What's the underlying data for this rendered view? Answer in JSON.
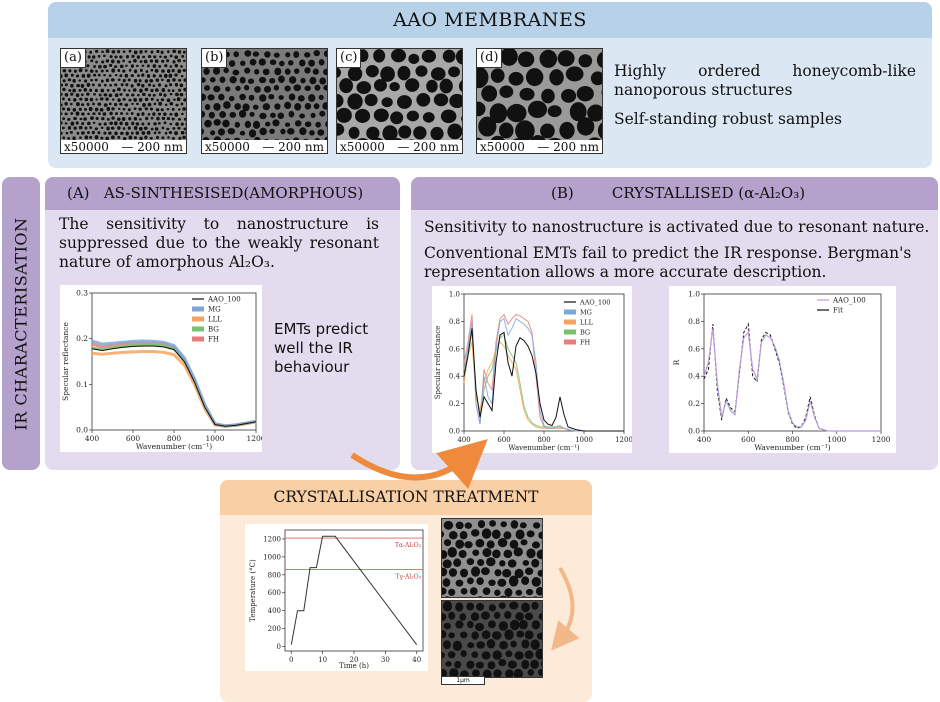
{
  "top": {
    "title": "AAO MEMBRANES",
    "panels": [
      {
        "label": "(a)",
        "magnification": "x50000",
        "scale": "200 nm"
      },
      {
        "label": "(b)",
        "magnification": "x50000",
        "scale": "200 nm"
      },
      {
        "label": "(c)",
        "magnification": "x50000",
        "scale": "200 nm"
      },
      {
        "label": "(d)",
        "magnification": "x50000",
        "scale": "200 nm"
      }
    ],
    "desc_line1": "Highly ordered honeycomb-like nanoporous structures",
    "desc_line2": "Self-standing robust samples"
  },
  "side": {
    "label": "IR CHARACTERISATION"
  },
  "panel_a": {
    "title": "(A)   AS-SINTHESISED(AMORPHOUS)",
    "text": "The sensitivity to nanostructure is suppressed due to the weakly resonant nature of amorphous Al₂O₃.",
    "emt_note": "EMTs predict well the IR behaviour"
  },
  "panel_b": {
    "title": "(B)        CRYSTALLISED (α-Al₂O₃)",
    "text1": "Sensitivity to nanostructure is activated due to resonant nature.",
    "text2": "Conventional EMTs fail to predict the IR response. Bergman's representation allows a more accurate description."
  },
  "panel_c": {
    "title": "CRYSTALLISATION TREATMENT",
    "sem_scale": "1μm"
  },
  "colors": {
    "blue": "#7da7d9",
    "orange": "#f4a460",
    "green": "#77c16f",
    "purple": "#b79cd9",
    "red": "#e87c7c",
    "arrow": "#ef8a3d"
  },
  "chart_data": [
    {
      "type": "line",
      "title": "",
      "xlabel": "Wavenumber (cm⁻¹)",
      "ylabel": "Specular reflectance",
      "xlim": [
        400,
        1200
      ],
      "ylim": [
        0,
        0.3
      ],
      "xticks": [
        "400",
        "600",
        "800",
        "1000",
        "1200"
      ],
      "yticks": [
        "0.0",
        "0.1",
        "0.2",
        "0.3"
      ],
      "legend": [
        "AAO_100",
        "MG",
        "LLL",
        "BG",
        "FH"
      ],
      "legend_position": "top-right",
      "x": [
        400,
        450,
        500,
        550,
        600,
        650,
        700,
        750,
        800,
        850,
        900,
        950,
        1000,
        1050,
        1100,
        1150,
        1200
      ],
      "series": [
        {
          "name": "AAO_100",
          "values": [
            0.178,
            0.174,
            0.178,
            0.181,
            0.183,
            0.184,
            0.184,
            0.182,
            0.176,
            0.15,
            0.105,
            0.05,
            0.012,
            0.008,
            0.01,
            0.014,
            0.018
          ]
        },
        {
          "name": "MG",
          "values": [
            0.195,
            0.188,
            0.19,
            0.192,
            0.194,
            0.195,
            0.194,
            0.192,
            0.185,
            0.158,
            0.112,
            0.055,
            0.014,
            0.009,
            0.011,
            0.015,
            0.019
          ]
        },
        {
          "name": "LLL",
          "values": [
            0.168,
            0.166,
            0.168,
            0.17,
            0.171,
            0.172,
            0.172,
            0.17,
            0.165,
            0.142,
            0.1,
            0.047,
            0.011,
            0.008,
            0.01,
            0.014,
            0.018
          ]
        },
        {
          "name": "BG",
          "values": [
            0.18,
            0.176,
            0.18,
            0.183,
            0.185,
            0.186,
            0.186,
            0.184,
            0.178,
            0.152,
            0.107,
            0.051,
            0.012,
            0.008,
            0.01,
            0.014,
            0.018
          ]
        },
        {
          "name": "FH",
          "values": [
            0.188,
            0.182,
            0.185,
            0.188,
            0.19,
            0.19,
            0.19,
            0.188,
            0.181,
            0.155,
            0.11,
            0.053,
            0.013,
            0.009,
            0.011,
            0.015,
            0.019
          ]
        }
      ]
    },
    {
      "type": "line",
      "title": "",
      "xlabel": "Wavenumber (cm⁻¹)",
      "ylabel": "Specular reflectance",
      "xlim": [
        400,
        1200
      ],
      "ylim": [
        0,
        1.0
      ],
      "xticks": [
        "400",
        "600",
        "800",
        "1000",
        "1200"
      ],
      "yticks": [
        "0.0",
        "0.2",
        "0.4",
        "0.6",
        "0.8",
        "1.0"
      ],
      "legend": [
        "AAO_100",
        "MG",
        "LLL",
        "BG",
        "FH"
      ],
      "legend_position": "top-right",
      "x": [
        400,
        420,
        440,
        460,
        480,
        500,
        520,
        540,
        560,
        580,
        600,
        620,
        640,
        660,
        680,
        700,
        720,
        740,
        760,
        780,
        800,
        820,
        840,
        860,
        880,
        900,
        920,
        960,
        1000,
        1100,
        1200
      ],
      "series": [
        {
          "name": "AAO_100",
          "values": [
            0.4,
            0.55,
            0.75,
            0.3,
            0.1,
            0.25,
            0.2,
            0.15,
            0.5,
            0.7,
            0.72,
            0.5,
            0.4,
            0.62,
            0.68,
            0.66,
            0.62,
            0.55,
            0.42,
            0.2,
            0.08,
            0.05,
            0.04,
            0.1,
            0.25,
            0.12,
            0.03,
            0.01,
            0.0,
            0.0,
            0.0
          ]
        },
        {
          "name": "MG",
          "values": [
            0.45,
            0.6,
            0.8,
            0.2,
            0.05,
            0.4,
            0.25,
            0.2,
            0.6,
            0.8,
            0.82,
            0.7,
            0.75,
            0.82,
            0.8,
            0.78,
            0.75,
            0.7,
            0.5,
            0.15,
            0.04,
            0.02,
            0.02,
            0.03,
            0.04,
            0.02,
            0.01,
            0.0,
            0.0,
            0.0,
            0.0
          ]
        },
        {
          "name": "LLL",
          "values": [
            0.35,
            0.55,
            0.65,
            0.25,
            0.15,
            0.35,
            0.45,
            0.5,
            0.6,
            0.65,
            0.62,
            0.55,
            0.5,
            0.45,
            0.3,
            0.15,
            0.08,
            0.05,
            0.03,
            0.02,
            0.02,
            0.02,
            0.02,
            0.02,
            0.02,
            0.02,
            0.01,
            0.0,
            0.0,
            0.0,
            0.0
          ]
        },
        {
          "name": "BG",
          "values": [
            0.4,
            0.6,
            0.72,
            0.3,
            0.12,
            0.3,
            0.4,
            0.45,
            0.58,
            0.68,
            0.7,
            0.6,
            0.55,
            0.5,
            0.35,
            0.18,
            0.1,
            0.06,
            0.04,
            0.03,
            0.03,
            0.03,
            0.03,
            0.03,
            0.03,
            0.02,
            0.01,
            0.0,
            0.0,
            0.0,
            0.0
          ]
        },
        {
          "name": "FH",
          "values": [
            0.5,
            0.65,
            0.85,
            0.2,
            0.05,
            0.45,
            0.35,
            0.3,
            0.65,
            0.82,
            0.85,
            0.78,
            0.82,
            0.85,
            0.84,
            0.82,
            0.8,
            0.72,
            0.4,
            0.1,
            0.03,
            0.02,
            0.02,
            0.02,
            0.02,
            0.02,
            0.01,
            0.0,
            0.0,
            0.0,
            0.0
          ]
        }
      ]
    },
    {
      "type": "line",
      "title": "",
      "xlabel": "Wavenumber (cm⁻¹)",
      "ylabel": "R",
      "xlim": [
        400,
        1200
      ],
      "ylim": [
        0,
        1.0
      ],
      "xticks": [
        "400",
        "600",
        "800",
        "1000",
        "1200"
      ],
      "yticks": [
        "0.0",
        "0.2",
        "0.4",
        "0.6",
        "0.8",
        "1.0"
      ],
      "legend": [
        "AAO_100",
        "Fit"
      ],
      "legend_position": "top-right",
      "x": [
        400,
        420,
        440,
        460,
        480,
        500,
        520,
        540,
        560,
        580,
        600,
        620,
        640,
        660,
        680,
        700,
        720,
        740,
        760,
        780,
        800,
        820,
        840,
        860,
        880,
        900,
        920,
        960,
        1000,
        1100,
        1200
      ],
      "series": [
        {
          "name": "AAO_100",
          "values": [
            0.4,
            0.5,
            0.75,
            0.35,
            0.1,
            0.22,
            0.15,
            0.12,
            0.45,
            0.68,
            0.72,
            0.45,
            0.38,
            0.65,
            0.7,
            0.68,
            0.62,
            0.52,
            0.35,
            0.15,
            0.06,
            0.03,
            0.03,
            0.08,
            0.22,
            0.1,
            0.02,
            0.0,
            0.0,
            0.0,
            0.0
          ]
        },
        {
          "name": "Fit",
          "values": [
            0.38,
            0.45,
            0.78,
            0.3,
            0.08,
            0.24,
            0.17,
            0.14,
            0.42,
            0.72,
            0.78,
            0.4,
            0.36,
            0.67,
            0.72,
            0.7,
            0.6,
            0.5,
            0.33,
            0.14,
            0.05,
            0.02,
            0.03,
            0.1,
            0.25,
            0.11,
            0.02,
            0.0,
            0.0,
            0.0,
            0.0
          ]
        }
      ]
    },
    {
      "type": "line",
      "title": "",
      "xlabel": "Time (h)",
      "ylabel": "Temperature (°C)",
      "xlim": [
        -2,
        42
      ],
      "ylim": [
        -50,
        1300
      ],
      "xticks": [
        "0",
        "10",
        "20",
        "30",
        "40"
      ],
      "yticks": [
        "0",
        "200",
        "400",
        "600",
        "800",
        "1000",
        "1200"
      ],
      "hlines": [
        {
          "value": 1210,
          "label": "Tα-Al₂O₃"
        },
        {
          "value": 860,
          "label": "Tγ-Al₂O₃"
        }
      ],
      "x": [
        0,
        2,
        4,
        6,
        8,
        10,
        11,
        14,
        40
      ],
      "series": [
        {
          "name": "",
          "values": [
            20,
            400,
            400,
            880,
            880,
            1230,
            1230,
            1230,
            20
          ]
        }
      ]
    }
  ]
}
